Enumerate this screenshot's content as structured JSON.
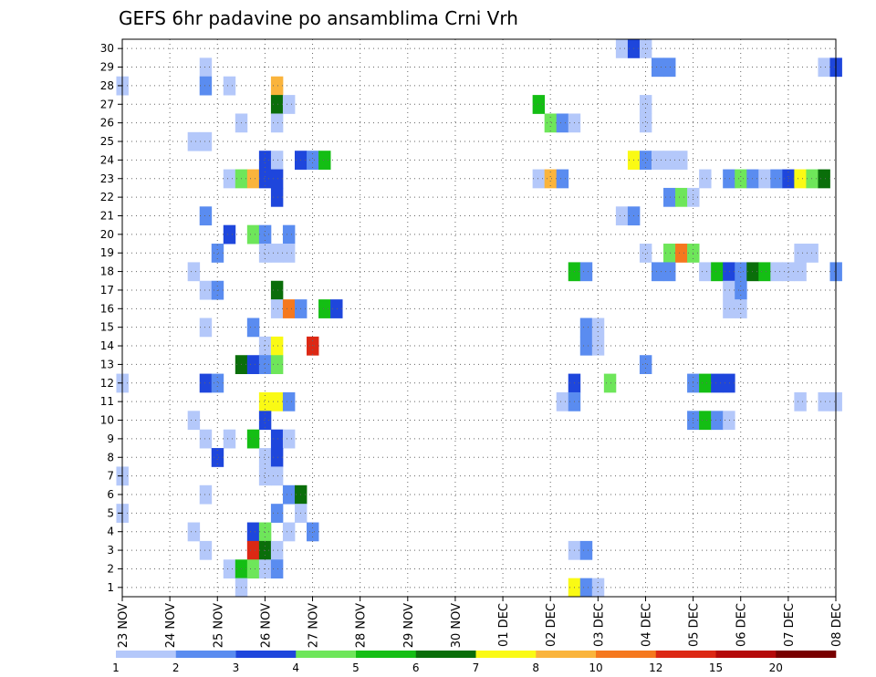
{
  "chart_data": {
    "type": "heatmap",
    "title": "GEFS 6hr padavine po ansamblima Crni Vrh",
    "xlabel": "",
    "ylabel": "",
    "y_ticks": [
      "1",
      "2",
      "3",
      "4",
      "5",
      "6",
      "7",
      "8",
      "9",
      "10",
      "11",
      "12",
      "13",
      "14",
      "15",
      "16",
      "17",
      "18",
      "19",
      "20",
      "21",
      "22",
      "23",
      "24",
      "25",
      "26",
      "27",
      "28",
      "29",
      "30"
    ],
    "x_tick_labels": [
      "23 NOV",
      "24 NOV",
      "25 NOV",
      "26 NOV",
      "27 NOV",
      "28 NOV",
      "29 NOV",
      "30 NOV",
      "01 DEC",
      "02 DEC",
      "03 DEC",
      "04 DEC",
      "05 DEC",
      "06 DEC",
      "07 DEC",
      "08 DEC"
    ],
    "x_steps": 60,
    "steps_per_day": 4,
    "grid": true,
    "legend": {
      "position": "bottom",
      "colors": [
        "#b4c8fa",
        "#5a8cf0",
        "#1e46dc",
        "#6ee65a",
        "#14be14",
        "#0a6e0a",
        "#fafa14",
        "#fab43c",
        "#f5781e",
        "#dc2814",
        "#b40a0a",
        "#780000"
      ],
      "labels": [
        "1",
        "2",
        "3",
        "4",
        "5",
        "6",
        "7",
        "8",
        "10",
        "12",
        "15",
        "20"
      ]
    },
    "cells": [
      {
        "member": 30,
        "step": 42,
        "level": 1
      },
      {
        "member": 30,
        "step": 43,
        "level": 3
      },
      {
        "member": 30,
        "step": 44,
        "level": 1
      },
      {
        "member": 29,
        "step": 7,
        "level": 1
      },
      {
        "member": 29,
        "step": 45,
        "level": 2
      },
      {
        "member": 29,
        "step": 46,
        "level": 2
      },
      {
        "member": 29,
        "step": 59,
        "level": 1
      },
      {
        "member": 29,
        "step": 60,
        "level": 3
      },
      {
        "member": 28,
        "step": 0,
        "level": 1
      },
      {
        "member": 28,
        "step": 7,
        "level": 2
      },
      {
        "member": 28,
        "step": 9,
        "level": 1
      },
      {
        "member": 28,
        "step": 13,
        "level": 8
      },
      {
        "member": 27,
        "step": 13,
        "level": 6
      },
      {
        "member": 27,
        "step": 14,
        "level": 1
      },
      {
        "member": 27,
        "step": 35,
        "level": 5
      },
      {
        "member": 27,
        "step": 44,
        "level": 1
      },
      {
        "member": 26,
        "step": 10,
        "level": 1
      },
      {
        "member": 26,
        "step": 13,
        "level": 1
      },
      {
        "member": 26,
        "step": 36,
        "level": 4
      },
      {
        "member": 26,
        "step": 37,
        "level": 2
      },
      {
        "member": 26,
        "step": 38,
        "level": 1
      },
      {
        "member": 26,
        "step": 44,
        "level": 1
      },
      {
        "member": 25,
        "step": 6,
        "level": 1
      },
      {
        "member": 25,
        "step": 7,
        "level": 1
      },
      {
        "member": 24,
        "step": 12,
        "level": 3
      },
      {
        "member": 24,
        "step": 13,
        "level": 1
      },
      {
        "member": 24,
        "step": 15,
        "level": 3
      },
      {
        "member": 24,
        "step": 16,
        "level": 2
      },
      {
        "member": 24,
        "step": 17,
        "level": 5
      },
      {
        "member": 24,
        "step": 43,
        "level": 7
      },
      {
        "member": 24,
        "step": 44,
        "level": 2
      },
      {
        "member": 24,
        "step": 45,
        "level": 1
      },
      {
        "member": 24,
        "step": 46,
        "level": 1
      },
      {
        "member": 24,
        "step": 47,
        "level": 1
      },
      {
        "member": 23,
        "step": 9,
        "level": 1
      },
      {
        "member": 23,
        "step": 10,
        "level": 4
      },
      {
        "member": 23,
        "step": 11,
        "level": 8
      },
      {
        "member": 23,
        "step": 12,
        "level": 3
      },
      {
        "member": 23,
        "step": 13,
        "level": 3
      },
      {
        "member": 23,
        "step": 35,
        "level": 1
      },
      {
        "member": 23,
        "step": 36,
        "level": 8
      },
      {
        "member": 23,
        "step": 37,
        "level": 2
      },
      {
        "member": 23,
        "step": 49,
        "level": 1
      },
      {
        "member": 23,
        "step": 51,
        "level": 2
      },
      {
        "member": 23,
        "step": 52,
        "level": 4
      },
      {
        "member": 23,
        "step": 53,
        "level": 2
      },
      {
        "member": 23,
        "step": 54,
        "level": 1
      },
      {
        "member": 23,
        "step": 55,
        "level": 2
      },
      {
        "member": 23,
        "step": 56,
        "level": 3
      },
      {
        "member": 23,
        "step": 57,
        "level": 7
      },
      {
        "member": 23,
        "step": 58,
        "level": 4
      },
      {
        "member": 23,
        "step": 59,
        "level": 6
      },
      {
        "member": 22,
        "step": 13,
        "level": 3
      },
      {
        "member": 22,
        "step": 46,
        "level": 2
      },
      {
        "member": 22,
        "step": 47,
        "level": 4
      },
      {
        "member": 22,
        "step": 48,
        "level": 1
      },
      {
        "member": 21,
        "step": 7,
        "level": 2
      },
      {
        "member": 21,
        "step": 42,
        "level": 1
      },
      {
        "member": 21,
        "step": 43,
        "level": 2
      },
      {
        "member": 20,
        "step": 9,
        "level": 3
      },
      {
        "member": 20,
        "step": 11,
        "level": 4
      },
      {
        "member": 20,
        "step": 12,
        "level": 2
      },
      {
        "member": 20,
        "step": 14,
        "level": 2
      },
      {
        "member": 19,
        "step": 8,
        "level": 2
      },
      {
        "member": 19,
        "step": 12,
        "level": 1
      },
      {
        "member": 19,
        "step": 13,
        "level": 1
      },
      {
        "member": 19,
        "step": 14,
        "level": 1
      },
      {
        "member": 19,
        "step": 44,
        "level": 1
      },
      {
        "member": 19,
        "step": 46,
        "level": 4
      },
      {
        "member": 19,
        "step": 47,
        "level": 9
      },
      {
        "member": 19,
        "step": 48,
        "level": 4
      },
      {
        "member": 19,
        "step": 57,
        "level": 1
      },
      {
        "member": 19,
        "step": 58,
        "level": 1
      },
      {
        "member": 18,
        "step": 6,
        "level": 1
      },
      {
        "member": 18,
        "step": 38,
        "level": 5
      },
      {
        "member": 18,
        "step": 39,
        "level": 2
      },
      {
        "member": 18,
        "step": 45,
        "level": 2
      },
      {
        "member": 18,
        "step": 46,
        "level": 2
      },
      {
        "member": 18,
        "step": 49,
        "level": 1
      },
      {
        "member": 18,
        "step": 50,
        "level": 5
      },
      {
        "member": 18,
        "step": 51,
        "level": 3
      },
      {
        "member": 18,
        "step": 52,
        "level": 2
      },
      {
        "member": 18,
        "step": 53,
        "level": 6
      },
      {
        "member": 18,
        "step": 54,
        "level": 5
      },
      {
        "member": 18,
        "step": 55,
        "level": 1
      },
      {
        "member": 18,
        "step": 56,
        "level": 1
      },
      {
        "member": 18,
        "step": 57,
        "level": 1
      },
      {
        "member": 18,
        "step": 60,
        "level": 2
      },
      {
        "member": 17,
        "step": 7,
        "level": 1
      },
      {
        "member": 17,
        "step": 8,
        "level": 2
      },
      {
        "member": 17,
        "step": 13,
        "level": 6
      },
      {
        "member": 17,
        "step": 51,
        "level": 1
      },
      {
        "member": 17,
        "step": 52,
        "level": 2
      },
      {
        "member": 16,
        "step": 13,
        "level": 1
      },
      {
        "member": 16,
        "step": 14,
        "level": 9
      },
      {
        "member": 16,
        "step": 15,
        "level": 2
      },
      {
        "member": 16,
        "step": 17,
        "level": 5
      },
      {
        "member": 16,
        "step": 18,
        "level": 3
      },
      {
        "member": 16,
        "step": 51,
        "level": 1
      },
      {
        "member": 16,
        "step": 52,
        "level": 1
      },
      {
        "member": 15,
        "step": 7,
        "level": 1
      },
      {
        "member": 15,
        "step": 11,
        "level": 2
      },
      {
        "member": 15,
        "step": 39,
        "level": 2
      },
      {
        "member": 15,
        "step": 40,
        "level": 1
      },
      {
        "member": 14,
        "step": 12,
        "level": 1
      },
      {
        "member": 14,
        "step": 13,
        "level": 7
      },
      {
        "member": 14,
        "step": 16,
        "level": 10
      },
      {
        "member": 14,
        "step": 39,
        "level": 2
      },
      {
        "member": 14,
        "step": 40,
        "level": 1
      },
      {
        "member": 13,
        "step": 10,
        "level": 6
      },
      {
        "member": 13,
        "step": 11,
        "level": 3
      },
      {
        "member": 13,
        "step": 12,
        "level": 2
      },
      {
        "member": 13,
        "step": 13,
        "level": 4
      },
      {
        "member": 13,
        "step": 44,
        "level": 2
      },
      {
        "member": 12,
        "step": 0,
        "level": 1
      },
      {
        "member": 12,
        "step": 7,
        "level": 3
      },
      {
        "member": 12,
        "step": 8,
        "level": 2
      },
      {
        "member": 12,
        "step": 38,
        "level": 3
      },
      {
        "member": 12,
        "step": 41,
        "level": 4
      },
      {
        "member": 12,
        "step": 48,
        "level": 2
      },
      {
        "member": 12,
        "step": 49,
        "level": 5
      },
      {
        "member": 12,
        "step": 50,
        "level": 3
      },
      {
        "member": 12,
        "step": 51,
        "level": 3
      },
      {
        "member": 11,
        "step": 12,
        "level": 7
      },
      {
        "member": 11,
        "step": 13,
        "level": 7
      },
      {
        "member": 11,
        "step": 14,
        "level": 2
      },
      {
        "member": 11,
        "step": 37,
        "level": 1
      },
      {
        "member": 11,
        "step": 38,
        "level": 2
      },
      {
        "member": 11,
        "step": 57,
        "level": 1
      },
      {
        "member": 11,
        "step": 59,
        "level": 1
      },
      {
        "member": 11,
        "step": 60,
        "level": 1
      },
      {
        "member": 10,
        "step": 6,
        "level": 1
      },
      {
        "member": 10,
        "step": 12,
        "level": 3
      },
      {
        "member": 10,
        "step": 48,
        "level": 2
      },
      {
        "member": 10,
        "step": 49,
        "level": 5
      },
      {
        "member": 10,
        "step": 50,
        "level": 2
      },
      {
        "member": 10,
        "step": 51,
        "level": 1
      },
      {
        "member": 9,
        "step": 7,
        "level": 1
      },
      {
        "member": 9,
        "step": 9,
        "level": 1
      },
      {
        "member": 9,
        "step": 11,
        "level": 5
      },
      {
        "member": 9,
        "step": 13,
        "level": 3
      },
      {
        "member": 9,
        "step": 14,
        "level": 1
      },
      {
        "member": 8,
        "step": 8,
        "level": 3
      },
      {
        "member": 8,
        "step": 12,
        "level": 1
      },
      {
        "member": 8,
        "step": 13,
        "level": 3
      },
      {
        "member": 7,
        "step": 0,
        "level": 1
      },
      {
        "member": 7,
        "step": 12,
        "level": 1
      },
      {
        "member": 7,
        "step": 13,
        "level": 1
      },
      {
        "member": 6,
        "step": 7,
        "level": 1
      },
      {
        "member": 6,
        "step": 14,
        "level": 2
      },
      {
        "member": 6,
        "step": 15,
        "level": 6
      },
      {
        "member": 5,
        "step": 0,
        "level": 1
      },
      {
        "member": 5,
        "step": 13,
        "level": 2
      },
      {
        "member": 5,
        "step": 15,
        "level": 1
      },
      {
        "member": 4,
        "step": 6,
        "level": 1
      },
      {
        "member": 4,
        "step": 11,
        "level": 3
      },
      {
        "member": 4,
        "step": 12,
        "level": 4
      },
      {
        "member": 4,
        "step": 14,
        "level": 1
      },
      {
        "member": 4,
        "step": 16,
        "level": 2
      },
      {
        "member": 3,
        "step": 7,
        "level": 1
      },
      {
        "member": 3,
        "step": 11,
        "level": 10
      },
      {
        "member": 3,
        "step": 12,
        "level": 6
      },
      {
        "member": 3,
        "step": 13,
        "level": 1
      },
      {
        "member": 3,
        "step": 38,
        "level": 1
      },
      {
        "member": 3,
        "step": 39,
        "level": 2
      },
      {
        "member": 2,
        "step": 9,
        "level": 1
      },
      {
        "member": 2,
        "step": 10,
        "level": 5
      },
      {
        "member": 2,
        "step": 11,
        "level": 4
      },
      {
        "member": 2,
        "step": 12,
        "level": 1
      },
      {
        "member": 2,
        "step": 13,
        "level": 2
      },
      {
        "member": 1,
        "step": 10,
        "level": 1
      },
      {
        "member": 1,
        "step": 38,
        "level": 7
      },
      {
        "member": 1,
        "step": 39,
        "level": 2
      },
      {
        "member": 1,
        "step": 40,
        "level": 1
      }
    ]
  }
}
